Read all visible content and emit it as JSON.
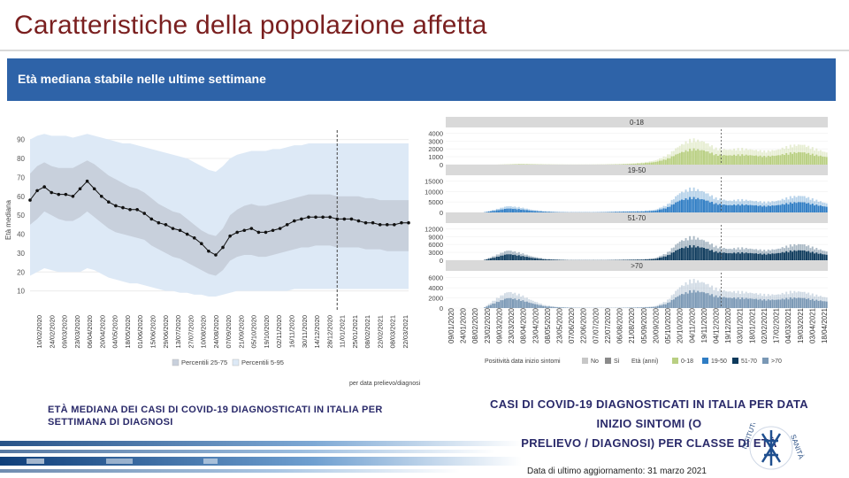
{
  "header": {
    "title": "Caratteristiche della popolazione affetta",
    "banner": "Età mediana stabile nelle ultime settimane"
  },
  "captions": {
    "left": "Età mediana dei casi di COVID-19 diagnosticati in Italia per settimana di diagnosi",
    "right_line1": "Casi di COVID-19 diagnosticati in Italia per data inizio sintomi (o",
    "right_line2": "prelievo / diagnosi) per classe di età"
  },
  "footer": {
    "date": "Data di ultimo aggiornamento: 31 marzo 2021"
  },
  "colors": {
    "title": "#7a1f1f",
    "banner": "#2e63a8",
    "band_25_75": "#c8d0dc",
    "band_5_95": "#dde9f6",
    "age_0_18": "#b9cf82",
    "age_19_50": "#2f7dc4",
    "age_51_70": "#0d3a5c",
    "age_gt70": "#7a98b5",
    "no_grey": "#c7c7c7",
    "si_grey": "#8a8a8a"
  },
  "chart_data": [
    {
      "type": "line",
      "title": "",
      "xlabel": "",
      "ylabel": "Età mediana",
      "ylim": [
        0,
        95
      ],
      "yticks": [
        10,
        20,
        30,
        40,
        50,
        60,
        70,
        80,
        90
      ],
      "x_tick_labels": [
        "10/02/2020",
        "24/02/2020",
        "09/03/2020",
        "23/03/2020",
        "06/04/2020",
        "20/04/2020",
        "04/05/2020",
        "18/05/2020",
        "01/06/2020",
        "15/06/2020",
        "29/06/2020",
        "13/07/2020",
        "27/07/2020",
        "10/08/2020",
        "24/08/2020",
        "07/09/2020",
        "21/09/2020",
        "05/10/2020",
        "19/10/2020",
        "02/11/2020",
        "16/11/2020",
        "30/11/2020",
        "14/12/2020",
        "28/12/2020",
        "11/01/2021",
        "25/01/2021",
        "08/02/2021",
        "22/02/2021",
        "08/03/2021",
        "22/03/2021"
      ],
      "series_median": [
        58,
        63,
        65,
        62,
        61,
        61,
        60,
        64,
        68,
        64,
        60,
        57,
        55,
        54,
        53,
        53,
        51,
        48,
        46,
        45,
        43,
        42,
        40,
        38,
        35,
        31,
        29,
        33,
        39,
        41,
        42,
        43,
        41,
        41,
        42,
        43,
        45,
        47,
        48,
        49,
        49,
        49,
        49,
        48,
        48,
        48,
        47,
        46,
        46,
        45,
        45,
        45,
        46,
        46
      ],
      "p25_75_low": [
        45,
        48,
        52,
        50,
        48,
        47,
        47,
        49,
        52,
        49,
        46,
        43,
        41,
        40,
        39,
        38,
        37,
        34,
        32,
        30,
        28,
        27,
        25,
        23,
        21,
        19,
        18,
        21,
        26,
        28,
        29,
        29,
        28,
        28,
        29,
        30,
        31,
        32,
        33,
        33,
        34,
        34,
        34,
        33,
        33,
        33,
        33,
        32,
        32,
        32,
        31,
        31,
        31,
        31
      ],
      "p25_75_high": [
        72,
        76,
        78,
        76,
        75,
        75,
        75,
        77,
        79,
        77,
        74,
        71,
        69,
        67,
        65,
        64,
        62,
        59,
        56,
        54,
        52,
        51,
        48,
        45,
        42,
        40,
        39,
        43,
        50,
        53,
        55,
        56,
        55,
        55,
        56,
        57,
        58,
        59,
        60,
        61,
        61,
        61,
        61,
        60,
        60,
        60,
        60,
        59,
        59,
        58,
        58,
        58,
        58,
        58
      ],
      "p5_95_low": [
        18,
        20,
        22,
        21,
        20,
        20,
        20,
        20,
        22,
        21,
        19,
        17,
        16,
        15,
        14,
        14,
        13,
        12,
        11,
        10,
        10,
        9,
        9,
        8,
        8,
        7,
        7,
        8,
        9,
        10,
        10,
        10,
        10,
        10,
        10,
        10,
        10,
        11,
        11,
        11,
        11,
        11,
        11,
        11,
        11,
        11,
        11,
        11,
        11,
        11,
        11,
        11,
        11,
        11
      ],
      "p5_95_high": [
        90,
        92,
        93,
        92,
        92,
        92,
        91,
        92,
        93,
        92,
        91,
        90,
        89,
        88,
        88,
        87,
        86,
        85,
        84,
        83,
        82,
        81,
        80,
        78,
        76,
        74,
        73,
        76,
        80,
        82,
        83,
        84,
        84,
        84,
        85,
        85,
        86,
        87,
        87,
        88,
        88,
        88,
        88,
        88,
        88,
        88,
        88,
        88,
        88,
        88,
        88,
        88,
        88,
        88
      ],
      "vline_index": 43,
      "legend": [
        {
          "label": "Percentili 25-75",
          "color": "#c8d0dc"
        },
        {
          "label": "Percentili 5-95",
          "color": "#dde9f6"
        }
      ],
      "legend_note": "per data prelievo/diagnosi"
    },
    {
      "type": "bar",
      "subtype": "faceted-stacked",
      "x_tick_labels": [
        "09/01/2020",
        "24/01/2020",
        "08/02/2020",
        "23/02/2020",
        "09/03/2020",
        "23/03/2020",
        "08/04/2020",
        "23/04/2020",
        "08/05/2020",
        "23/05/2020",
        "07/06/2020",
        "22/06/2020",
        "07/07/2020",
        "22/07/2020",
        "06/08/2020",
        "21/08/2020",
        "05/09/2020",
        "20/09/2020",
        "05/10/2020",
        "20/10/2020",
        "04/11/2020",
        "19/11/2020",
        "04/12/2020",
        "19/12/2020",
        "03/01/2021",
        "18/01/2021",
        "02/02/2021",
        "17/02/2021",
        "04/03/2021",
        "19/03/2021",
        "03/04/2021",
        "18/04/2021"
      ],
      "vline_tick_index": 22,
      "panels": [
        {
          "name": "0-18",
          "ylim": [
            0,
            4500
          ],
          "yticks": [
            0,
            1000,
            2000,
            3000,
            4000
          ],
          "peak": 3600,
          "profile": [
            0,
            0,
            0,
            0,
            0,
            0.01,
            0.03,
            0.02,
            0.01,
            0.005,
            0.003,
            0.003,
            0.004,
            0.008,
            0.02,
            0.04,
            0.08,
            0.15,
            0.35,
            0.7,
            0.95,
            0.85,
            0.6,
            0.55,
            0.6,
            0.55,
            0.5,
            0.55,
            0.7,
            0.75,
            0.6,
            0.45
          ]
        },
        {
          "name": "19-50",
          "ylim": [
            0,
            17000
          ],
          "yticks": [
            0,
            5000,
            10000,
            15000
          ],
          "peak": 13000,
          "profile": [
            0,
            0,
            0,
            0,
            0.12,
            0.25,
            0.2,
            0.1,
            0.05,
            0.02,
            0.01,
            0.01,
            0.01,
            0.02,
            0.04,
            0.05,
            0.06,
            0.1,
            0.3,
            0.75,
            0.95,
            0.8,
            0.55,
            0.45,
            0.5,
            0.45,
            0.4,
            0.45,
            0.6,
            0.65,
            0.5,
            0.35
          ]
        },
        {
          "name": "51-70",
          "ylim": [
            0,
            13500
          ],
          "yticks": [
            0,
            3000,
            6000,
            9000,
            12000
          ],
          "peak": 10000,
          "profile": [
            0,
            0,
            0,
            0,
            0.2,
            0.4,
            0.3,
            0.15,
            0.06,
            0.03,
            0.01,
            0.01,
            0.01,
            0.01,
            0.02,
            0.03,
            0.04,
            0.08,
            0.3,
            0.75,
            0.95,
            0.8,
            0.55,
            0.45,
            0.5,
            0.45,
            0.4,
            0.45,
            0.6,
            0.65,
            0.5,
            0.35
          ]
        },
        {
          "name": ">70",
          "ylim": [
            0,
            7000
          ],
          "yticks": [
            0,
            2000,
            4000,
            6000
          ],
          "peak": 6200,
          "profile": [
            0,
            0,
            0,
            0,
            0.3,
            0.55,
            0.45,
            0.25,
            0.1,
            0.04,
            0.02,
            0.01,
            0.01,
            0.01,
            0.01,
            0.02,
            0.03,
            0.06,
            0.25,
            0.7,
            0.95,
            0.85,
            0.65,
            0.55,
            0.55,
            0.5,
            0.45,
            0.45,
            0.55,
            0.55,
            0.45,
            0.35
          ]
        }
      ],
      "legend_title_1": "Positività data inizio sintomi",
      "legend_items_1": [
        {
          "label": "No",
          "color": "#c7c7c7"
        },
        {
          "label": "Sì",
          "color": "#8a8a8a"
        }
      ],
      "legend_title_2": "Età (anni)",
      "legend_items_2": [
        {
          "label": "0-18",
          "color": "#b9cf82"
        },
        {
          "label": "19-50",
          "color": "#2f7dc4"
        },
        {
          "label": "51-70",
          "color": "#0d3a5c"
        },
        {
          "label": ">70",
          "color": "#7a98b5"
        }
      ]
    }
  ]
}
